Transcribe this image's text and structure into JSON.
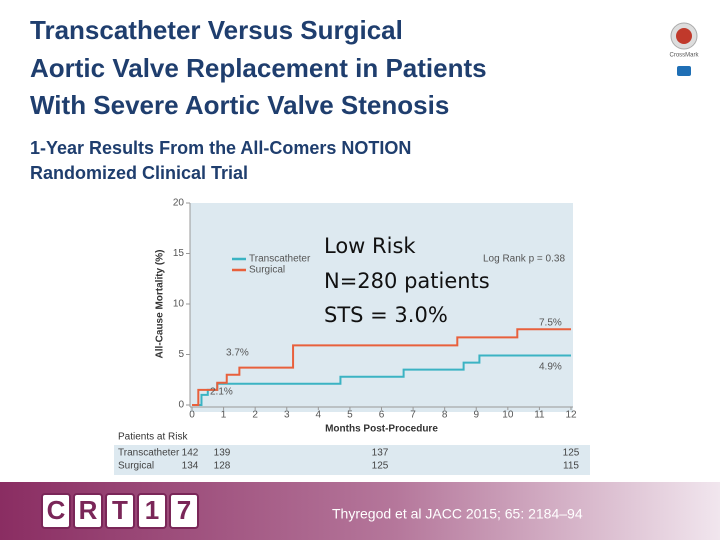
{
  "header": {
    "title_lines": [
      "Transcatheter Versus Surgical",
      "Aortic Valve Replacement in Patients",
      "With Severe Aortic Valve Stenosis"
    ],
    "subtitle_lines": [
      "1-Year Results From the All-Comers NOTION",
      "Randomized Clinical Trial"
    ],
    "badge": "CrossMark"
  },
  "chart_data": {
    "type": "line",
    "step": "post",
    "xlabel": "Months Post-Procedure",
    "ylabel": "All-Cause Mortality (%)",
    "xlim": [
      0,
      12
    ],
    "xticks": [
      0,
      1,
      2,
      3,
      4,
      5,
      6,
      7,
      8,
      9,
      10,
      11,
      12
    ],
    "ylim": [
      0,
      20
    ],
    "yticks": [
      0,
      5,
      10,
      15,
      20
    ],
    "legend": "upper left",
    "series": [
      {
        "name": "Transcatheter",
        "color": "#3bb3c3",
        "x": [
          0,
          0.3,
          0.5,
          0.8,
          4.7,
          6.7,
          8.6,
          9.1,
          12
        ],
        "values": [
          0,
          1.0,
          1.5,
          2.1,
          2.8,
          3.5,
          4.2,
          4.9,
          4.9
        ]
      },
      {
        "name": "Surgical",
        "color": "#e8603c",
        "x": [
          0,
          0.2,
          0.8,
          1.1,
          1.5,
          3.2,
          8.4,
          10.3,
          12
        ],
        "values": [
          0,
          1.5,
          2.2,
          3.0,
          3.7,
          5.9,
          6.7,
          7.5,
          7.5
        ]
      }
    ],
    "annotations": [
      "Log Rank p = 0.38",
      "7.5%",
      "4.9%",
      "3.7%",
      "2.1%"
    ],
    "overlay": [
      "Low Risk",
      "N=280 patients",
      "STS = 3.0%"
    ],
    "risk_table": {
      "title": "Patients at Risk",
      "rows": [
        {
          "name": "Transcatheter",
          "values": [
            142,
            139,
            137,
            125
          ]
        },
        {
          "name": "Surgical",
          "values": [
            134,
            128,
            125,
            115
          ]
        }
      ]
    }
  },
  "footer": {
    "logo": [
      "C",
      "R",
      "T",
      "1",
      "7"
    ],
    "citation": "Thyregod et al JACC 2015; 65: 2184–94"
  }
}
